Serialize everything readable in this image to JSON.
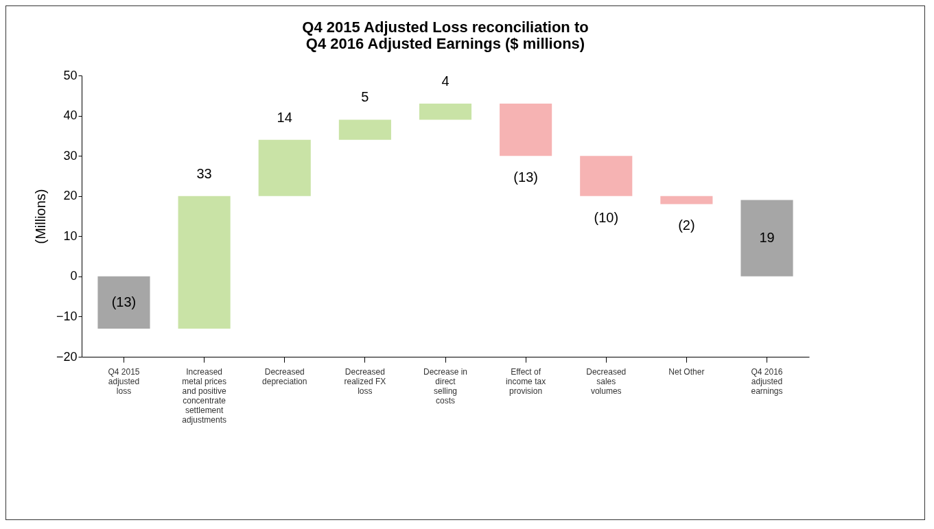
{
  "chart_data": {
    "type": "bar",
    "title": "Q4 2015 Adjusted Loss reconciliation to Q4 2016 Adjusted Earnings ($ millions)",
    "ylabel": "(Millions)",
    "categories": [
      "Q4 2015 adjusted loss",
      "Increased metal prices and positive concentrate settlement adjustments",
      "Decreased depreciation",
      "Decreased realized FX loss",
      "Decrease in direct selling costs",
      "Effect of income tax provision",
      "Decreased sales volumes",
      "Net Other",
      "Q4 2016 adjusted earnings"
    ],
    "values": [
      -13,
      33,
      14,
      5,
      4,
      -13,
      -10,
      -2,
      19
    ],
    "base": [
      0,
      -13,
      20,
      34,
      39,
      43,
      30,
      20,
      0
    ],
    "colors": [
      "#a6a6a6",
      "#c9e3a6",
      "#c9e3a6",
      "#c9e3a6",
      "#c9e3a6",
      "#f6b3b3",
      "#f6b3b3",
      "#f6b3b3",
      "#a6a6a6"
    ],
    "value_labels": [
      "(13)",
      "33",
      "14",
      "5",
      "4",
      "(13)",
      "(10)",
      "(2)",
      "19"
    ],
    "ylim": [
      -20,
      50
    ],
    "yticks": [
      -20,
      -10,
      0,
      10,
      20,
      30,
      40,
      50
    ],
    "grid": false
  }
}
